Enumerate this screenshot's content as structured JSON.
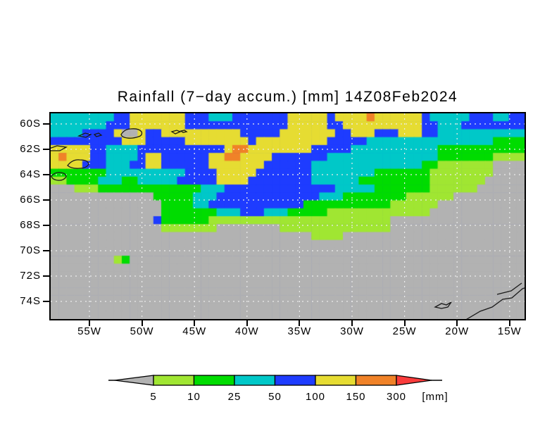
{
  "title": "Rainfall (7−day accum.) [mm] 14Z08Feb2024",
  "axes": {
    "lat_labels": [
      "60S",
      "62S",
      "64S",
      "66S",
      "68S",
      "70S",
      "72S",
      "74S"
    ],
    "lon_labels": [
      "55W",
      "50W",
      "45W",
      "40W",
      "35W",
      "30W",
      "25W",
      "20W",
      "15W"
    ]
  },
  "legend": {
    "values": [
      "5",
      "10",
      "25",
      "50",
      "100",
      "150",
      "300"
    ],
    "unit_label": "[mm]",
    "segment_colors": [
      "#b2b2b2",
      "#a0e632",
      "#00dc00",
      "#00c8c8",
      "#1e3cff",
      "#e6dc32",
      "#f08228",
      "#fa3c3c"
    ]
  },
  "chart_data": {
    "type": "heatmap",
    "title": "Rainfall (7−day accum.) [mm] 14Z08Feb2024",
    "lat_ticks": [
      "60S",
      "62S",
      "64S",
      "66S",
      "68S",
      "70S",
      "72S",
      "74S"
    ],
    "lon_ticks": [
      "55W",
      "50W",
      "45W",
      "40W",
      "35W",
      "30W",
      "25W",
      "20W",
      "15W"
    ],
    "legend_thresholds_mm": [
      5,
      10,
      25,
      50,
      100,
      150,
      300
    ],
    "legend_unit": "[mm]",
    "palette": {
      "G": "#b2b2b2",
      "L": "#a0e632",
      "g": "#00dc00",
      "c": "#00c8c8",
      "b": "#1e3cff",
      "y": "#e6dc32",
      "o": "#f08228",
      "r": "#fa3c3c"
    },
    "value_ranges_mm": {
      "G": "<5",
      "L": "5-10",
      "g": "10-25",
      "c": "25-50",
      "b": "50-100",
      "y": "100-150",
      "o": "150-300",
      "r": ">300"
    },
    "grid_rows": [
      "ccccccccbbyyyyyyybbbcccbbbbbbbyyyyybyyyyoyyyyyybcccccbbbccbb",
      "cccccccbbbyyyyyyybbbbbbbbbbbbbyyyyybbyyyyyyyyyybbcccbbbbbbbb",
      "ccccbbbbyGGybbyyyyyyyyyybbbbbyyyyyyybbyyybbbyyybbccccccccccc",
      "bbbbbbbbbyyybbbbbyyyyyyyybyyyyyyyyybbbbbccccccccccccccccgggg",
      "yyyyybbccccbbbbbbbbbbbyooyyyyyyyybbbbbcccccccccccggggggggggg",
      "yoyyybbccccbyybbbbbbyyooyyyybbbbbbbccccccccccccccgggggggLLLL",
      "yyyybbbcccbbyybbbbbbyyyyyyybbbbbbccccccccccccccggLLLLLLLGGGG",
      "gggggggccccccccccbbbbyyyyybbbbbbbccccccccgggggggLLLLLLLLGGGG",
      "LLggggcccggcccccbbbbbyyyybbbbbbbbccccccgggggggggLLLLLLLGGGGG",
      "GGGLLLgggggggggggggcccbbbbbbbbbbbbbbcccccgggggggLLLLLLGGGGGG",
      "GGGGGGGGGGGGGgggggcccbbbbbbbbbbbbbcccggggggggLLLLLLGGGGGGGGG",
      "GGGGGGGGGGGGGGggggccbbbbbbbbbbbbgggggggggggLLLLLLGGGGGGGGGGG",
      "GGGGGGGGGGGGGGgggggggcccbbbcccgggggLLLLLLLLLLLLLGGGGGGGGGGGG",
      "GGGGGGGGGGGGGbggggggLLLLLLLLLLLLLLLLLLLLLLLGGGGGGGGGGGGGGGGG",
      "GGGGGGGGGGGGGGLLLLLLLGGGGGGGGLLLLLLLLLLLLLLGGGGGGGGGGGGGGGGG",
      "GGGGGGGGGGGGGGGGGGGGGGGGGGGGGGGGGLLLLGGGGGGGGGGGGGGGGGGGGGGG",
      "GGGGGGGGGGGGGGGGGGGGGGGGGGGGGGGGGGGGGGGGGGGGGGGGGGGGGGGGGGGG",
      "GGGGGGGGGGGGGGGGGGGGGGGGGGGGGGGGGGGGGGGGGGGGGGGGGGGGGGGGGGGG",
      "GGGGGGGGLgGGGGGGGGGGGGGGGGGGGGGGGGGGGGGGGGGGGGGGGGGGGGGGGGGG",
      "GGGGGGGGGGGGGGGGGGGGGGGGGGGGGGGGGGGGGGGGGGGGGGGGGGGGGGGGGGGG",
      "GGGGGGGGGGGGGGGGGGGGGGGGGGGGGGGGGGGGGGGGGGGGGGGGGGGGGGGGGGGG",
      "GGGGGGGGGGGGGGGGGGGGGGGGGGGGGGGGGGGGGGGGGGGGGGGGGGGGGGGGGGGG",
      "GGGGGGGGGGGGGGGGGGGGGGGGGGGGGGGGGGGGGGGGGGGGGGGGGGGGGGGGGGGG",
      "GGGGGGGGGGGGGGGGGGGGGGGGGGGGGGGGGGGGGGGGGGGGGGGGGGGGGGGGGGGG",
      "GGGGGGGGGGGGGGGGGGGGGGGGGGGGGGGGGGGGGGGGGGGGGGGGGGGGGGGGGGGG",
      "GGGGGGGGGGGGGGGGGGGGGGGGGGGGGGGGGGGGGGGGGGGGGGGGGGGGGGGGGGGG"
    ]
  },
  "coastlines": {
    "stroke_color": "#1a1a1a",
    "paths": [
      "M40,32 l9,-4 l8,2 l-7,4 l-10,-2 z",
      "M62,30 l6,-2 l4,3 l-7,2 z",
      "M100,30 q5,-8 14,-8 q11,-1 15,4 q2,5 -4,7 q-9,3 -16,2 q-8,-1 -9,-5 z",
      "M172,26 l7,-2 l5,2 l-7,3 z",
      "M185,25 l5,-1 l3,2 l-5,1 z",
      "M-2,50 l11,-4 l13,2 l-9,5 l-15,0 z",
      "M24,74 q7,-9 17,-8 q12,0 13,6 q-3,6 -13,6 q-11,1 -17,-4 z",
      "M1,89 q5,-6 13,-5 q8,1 8,6 q-4,6 -12,5 q-8,-1 -9,-6 z",
      "M546,275 l9,-5 l7,2 l7,-4 l-5,7 l-9,2 l-9,-2 z",
      "M588,294 l22,-13 l17,-6 l15,-11 l13,-2 l15,-13 l11,-4",
      "M634,257 l20,-5 l15,-11"
    ]
  },
  "gridlines": {
    "color": "#ececec"
  }
}
